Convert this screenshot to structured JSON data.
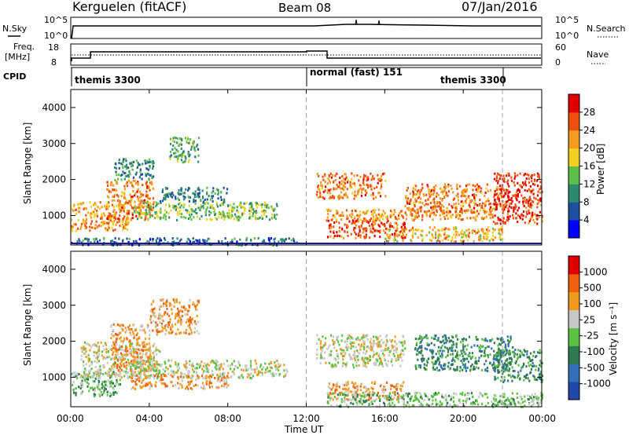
{
  "header": {
    "station": "Kerguelen (fitACF)",
    "beam": "Beam 08",
    "date": "07/Jan/2016"
  },
  "noise_panel": {
    "left_label": "N.Sky",
    "right_label": "N.Search",
    "left_ticks": [
      "10^5",
      "10^0"
    ],
    "right_ticks": [
      "10^5",
      "10^0"
    ]
  },
  "freq_panel": {
    "left_label_1": "Freq.",
    "left_label_2": "[MHz]",
    "right_label": "Nave",
    "left_ticks": [
      "18",
      "8"
    ],
    "right_ticks": [
      "60",
      "0"
    ]
  },
  "cpid_panel": {
    "label": "CPID",
    "modes": [
      {
        "text": "themis 3300",
        "start_hour": 0
      },
      {
        "text": "normal (fast) 151",
        "start_hour": 12
      },
      {
        "text": "themis 3300",
        "start_hour": 22
      }
    ]
  },
  "power_panel": {
    "ylabel": "Slant Range [km]",
    "yticks": [
      "4000",
      "3000",
      "2000",
      "1000"
    ],
    "colorbar_label": "Power [dB]",
    "colorbar_ticks": [
      "28",
      "24",
      "20",
      "16",
      "12",
      "8",
      "4"
    ]
  },
  "velocity_panel": {
    "ylabel": "Slant Range [km]",
    "yticks": [
      "4000",
      "3000",
      "2000",
      "1000"
    ],
    "colorbar_label": "Velocity [m s⁻¹]",
    "colorbar_ticks": [
      "1000",
      "500",
      "100",
      "25",
      "-25",
      "-100",
      "-500",
      "-1000"
    ]
  },
  "x_axis": {
    "ticks": [
      "00:00",
      "04:00",
      "08:00",
      "12:00",
      "16:00",
      "20:00",
      "00:00"
    ],
    "label": "Time UT"
  },
  "chart_data": [
    {
      "type": "heatmap",
      "title": "Power",
      "xlabel": "Time UT",
      "ylabel": "Slant Range [km]",
      "xlim_hours": [
        0,
        24
      ],
      "ylim_km": [
        180,
        4500
      ],
      "colorbar": {
        "label": "Power [dB]",
        "range": [
          0,
          30
        ],
        "ticks": [
          4,
          8,
          12,
          16,
          20,
          24,
          28
        ]
      },
      "colors": [
        "#0000ff",
        "#1f4fa0",
        "#2e8a6e",
        "#5cbf4a",
        "#f0d020",
        "#f59a20",
        "#ee5010",
        "#e00000"
      ],
      "regions": [
        {
          "t": [
            0.0,
            3.0
          ],
          "r": [
            600,
            1400
          ],
          "level": 22
        },
        {
          "t": [
            1.8,
            4.2
          ],
          "r": [
            900,
            2000
          ],
          "level": 24
        },
        {
          "t": [
            2.2,
            4.2
          ],
          "r": [
            2000,
            2600
          ],
          "level": 10
        },
        {
          "t": [
            3.2,
            10.5
          ],
          "r": [
            900,
            1400
          ],
          "level": 14
        },
        {
          "t": [
            4.5,
            8.0
          ],
          "r": [
            1400,
            1800
          ],
          "level": 9
        },
        {
          "t": [
            5.0,
            6.5
          ],
          "r": [
            2500,
            3200
          ],
          "level": 12
        },
        {
          "t": [
            0.0,
            11.5
          ],
          "r": [
            200,
            400
          ],
          "level": 8
        },
        {
          "t": [
            12.5,
            16.0
          ],
          "r": [
            1500,
            2200
          ],
          "level": 24
        },
        {
          "t": [
            13.0,
            17.0
          ],
          "r": [
            400,
            900
          ],
          "level": 26
        },
        {
          "t": [
            13.0,
            21.5
          ],
          "r": [
            900,
            1200
          ],
          "level": 22
        },
        {
          "t": [
            17.0,
            22.0
          ],
          "r": [
            1100,
            1900
          ],
          "level": 24
        },
        {
          "t": [
            21.5,
            24.0
          ],
          "r": [
            800,
            2200
          ],
          "level": 28
        },
        {
          "t": [
            16.0,
            22.0
          ],
          "r": [
            300,
            700
          ],
          "level": 20
        }
      ]
    },
    {
      "type": "heatmap",
      "title": "Velocity",
      "xlabel": "Time UT",
      "ylabel": "Slant Range [km]",
      "xlim_hours": [
        0,
        24
      ],
      "ylim_km": [
        180,
        4500
      ],
      "colorbar": {
        "label": "Velocity [m s⁻¹]",
        "ticks": [
          1000,
          500,
          100,
          25,
          -25,
          -100,
          -500,
          -1000
        ]
      },
      "colors": [
        "#1f48a8",
        "#3470b8",
        "#2e7a50",
        "#5cc040",
        "#c8c8c8",
        "#f09a20",
        "#ee6010",
        "#e00000"
      ],
      "regions": [
        {
          "t": [
            0.0,
            2.5
          ],
          "r": [
            500,
            1200
          ],
          "class": 3
        },
        {
          "t": [
            0.5,
            4.5
          ],
          "r": [
            1000,
            2000
          ],
          "class": 4
        },
        {
          "t": [
            2.0,
            4.0
          ],
          "r": [
            1200,
            2500
          ],
          "class": 5
        },
        {
          "t": [
            4.0,
            6.5
          ],
          "r": [
            2200,
            3200
          ],
          "class": 5
        },
        {
          "t": [
            3.0,
            11.0
          ],
          "r": [
            1000,
            1500
          ],
          "class": 4
        },
        {
          "t": [
            3.0,
            8.0
          ],
          "r": [
            700,
            1100
          ],
          "class": 5
        },
        {
          "t": [
            12.5,
            17.0
          ],
          "r": [
            1300,
            2200
          ],
          "class": 4
        },
        {
          "t": [
            13.0,
            17.0
          ],
          "r": [
            400,
            900
          ],
          "class": 5
        },
        {
          "t": [
            17.5,
            22.5
          ],
          "r": [
            1200,
            2200
          ],
          "class": 2
        },
        {
          "t": [
            21.5,
            24.0
          ],
          "r": [
            900,
            1800
          ],
          "class": 2
        },
        {
          "t": [
            13.0,
            24.0
          ],
          "r": [
            200,
            600
          ],
          "class": 3
        }
      ]
    }
  ]
}
